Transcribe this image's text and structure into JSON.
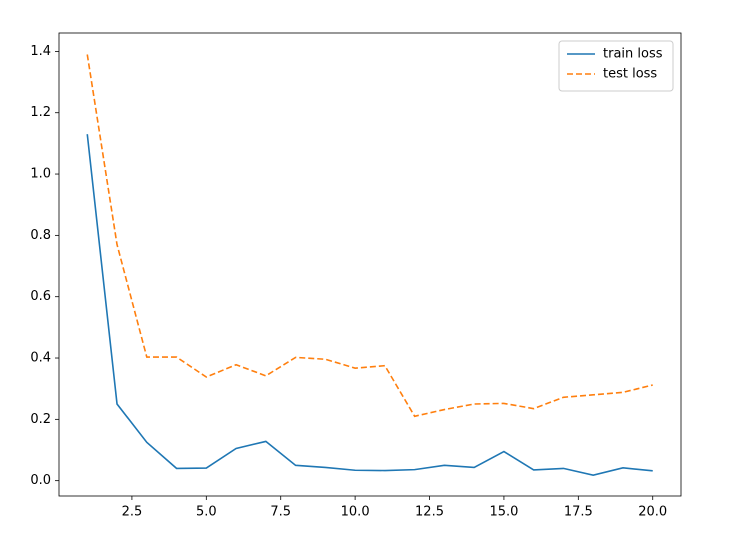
{
  "chart_data": {
    "type": "line",
    "x": [
      1,
      2,
      3,
      4,
      5,
      6,
      7,
      8,
      9,
      10,
      11,
      12,
      13,
      14,
      15,
      16,
      17,
      18,
      19,
      20
    ],
    "series": [
      {
        "name": "train loss",
        "color": "#1f77b4",
        "linestyle": "solid",
        "values": [
          1.13,
          0.25,
          0.125,
          0.04,
          0.041,
          0.105,
          0.128,
          0.05,
          0.043,
          0.034,
          0.033,
          0.036,
          0.05,
          0.043,
          0.095,
          0.035,
          0.04,
          0.018,
          0.042,
          0.032
        ]
      },
      {
        "name": "test loss",
        "color": "#ff7f0e",
        "linestyle": "dashed",
        "values": [
          1.39,
          0.77,
          0.403,
          0.403,
          0.338,
          0.378,
          0.342,
          0.402,
          0.396,
          0.367,
          0.375,
          0.21,
          0.232,
          0.25,
          0.252,
          0.235,
          0.272,
          0.28,
          0.288,
          0.312
        ]
      }
    ],
    "xlim": [
      0.05,
      20.95
    ],
    "xticks": [
      2.5,
      {
        "value": 5,
        "label": "5.0"
      },
      7.5,
      {
        "value": 10,
        "label": "10.0"
      },
      12.5,
      {
        "value": 15,
        "label": "15.0"
      },
      17.5,
      {
        "value": 20,
        "label": "20.0"
      }
    ],
    "ylim": [
      -0.05,
      1.46
    ],
    "yticks": [
      {
        "value": 0,
        "label": "0.0"
      },
      0.2,
      0.4,
      0.6,
      0.8,
      {
        "value": 1,
        "label": "1.0"
      },
      1.2,
      1.4
    ],
    "grid": false,
    "legend": "upper-right"
  }
}
